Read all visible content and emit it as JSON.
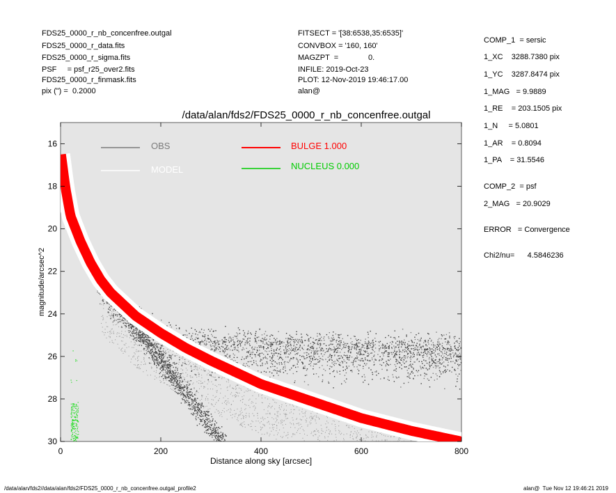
{
  "header": {
    "left": [
      "FDS25_0000_r_nb_concenfree.outgal",
      "FDS25_0000_r_data.fits",
      "FDS25_0000_r_sigma.fits",
      "PSF     = psf_r25_over2.fits",
      "FDS25_0000_r_finmask.fits",
      "pix (\") =  0.2000"
    ],
    "middle": [
      "FITSECT = '[38:6538,35:6535]'",
      "CONVBOX = '160, 160'",
      "MAGZPT  =              0.",
      "INFILE: 2019-Oct-23",
      "PLOT: 12-Nov-2019 19:46:17.00",
      "alan@"
    ]
  },
  "sidebar": {
    "comp1": [
      "COMP_1  = sersic",
      "1_XC    3288.7380 pix",
      "1_YC    3287.8474 pix",
      "1_MAG   = 9.9889",
      "1_RE    = 203.1505 pix",
      "1_N     = 5.0801",
      "1_AR    = 0.8094",
      "1_PA    = 31.5546"
    ],
    "comp2": [
      "COMP_2  = psf",
      "2_MAG   = 20.9029"
    ],
    "error": "ERROR   = Convergence",
    "chi2": "Chi2/nu=      4.5846236"
  },
  "footer": {
    "left": "/data/alan/fds2//data/alan/fds2/FDS25_0000_r_nb_concenfree.outgal_profile2",
    "right": "alan@  Tue Nov 12 19:46:21 2019"
  },
  "chart_data": {
    "type": "scatter",
    "title": "/data/alan/fds2/FDS25_0000_r_nb_concenfree.outgal",
    "xlabel": "Distance along sky [arcsec]",
    "ylabel": "magnitude/arcsec^2",
    "xlim": [
      0,
      800
    ],
    "ylim": [
      30,
      15
    ],
    "y_inverted": true,
    "xticks": [
      0,
      200,
      400,
      600,
      800
    ],
    "yticks": [
      16,
      18,
      20,
      22,
      24,
      26,
      28,
      30
    ],
    "grid": false,
    "background": "#e5e5e5",
    "legend": [
      {
        "label": "OBS",
        "color": "#7a7a7a"
      },
      {
        "label": "MODEL",
        "color": "#ffffff"
      },
      {
        "label": "BULGE  1.000",
        "color": "#ff0000"
      },
      {
        "label": "NUCLEUS  0.000",
        "color": "#00cc00"
      }
    ],
    "series": [
      {
        "name": "OBS",
        "color": "#555555",
        "x": [
          2,
          10,
          20,
          40,
          60,
          80,
          100,
          150,
          200,
          250,
          300,
          400,
          500,
          600,
          700,
          800
        ],
        "y": [
          16.6,
          18.2,
          19.6,
          21.0,
          21.5,
          22.4,
          23.2,
          24.2,
          25.0,
          25.3,
          25.4,
          25.5,
          25.6,
          25.6,
          25.7,
          25.7
        ]
      },
      {
        "name": "MODEL",
        "color": "#ffffff",
        "x": [
          1,
          10,
          20,
          40,
          60,
          80,
          100,
          150,
          200,
          250,
          300,
          400,
          500,
          600,
          700,
          800
        ],
        "y": [
          16.5,
          18.1,
          19.4,
          20.6,
          21.6,
          22.4,
          23.0,
          24.1,
          24.9,
          25.6,
          26.2,
          27.3,
          28.1,
          28.9,
          29.5,
          30.0
        ]
      },
      {
        "name": "BULGE  1.000",
        "color": "#ff0000",
        "x": [
          1,
          10,
          20,
          40,
          60,
          80,
          100,
          150,
          200,
          250,
          300,
          400,
          500,
          600,
          700,
          800
        ],
        "y": [
          16.5,
          18.1,
          19.4,
          20.6,
          21.6,
          22.4,
          23.0,
          24.1,
          24.9,
          25.6,
          26.2,
          27.3,
          28.1,
          28.9,
          29.5,
          30.0
        ]
      },
      {
        "name": "NUCLEUS  0.000",
        "color": "#00cc00",
        "x": [
          20,
          25,
          30,
          35
        ],
        "y": [
          30.0,
          29.6,
          29.0,
          28.6
        ]
      }
    ]
  }
}
